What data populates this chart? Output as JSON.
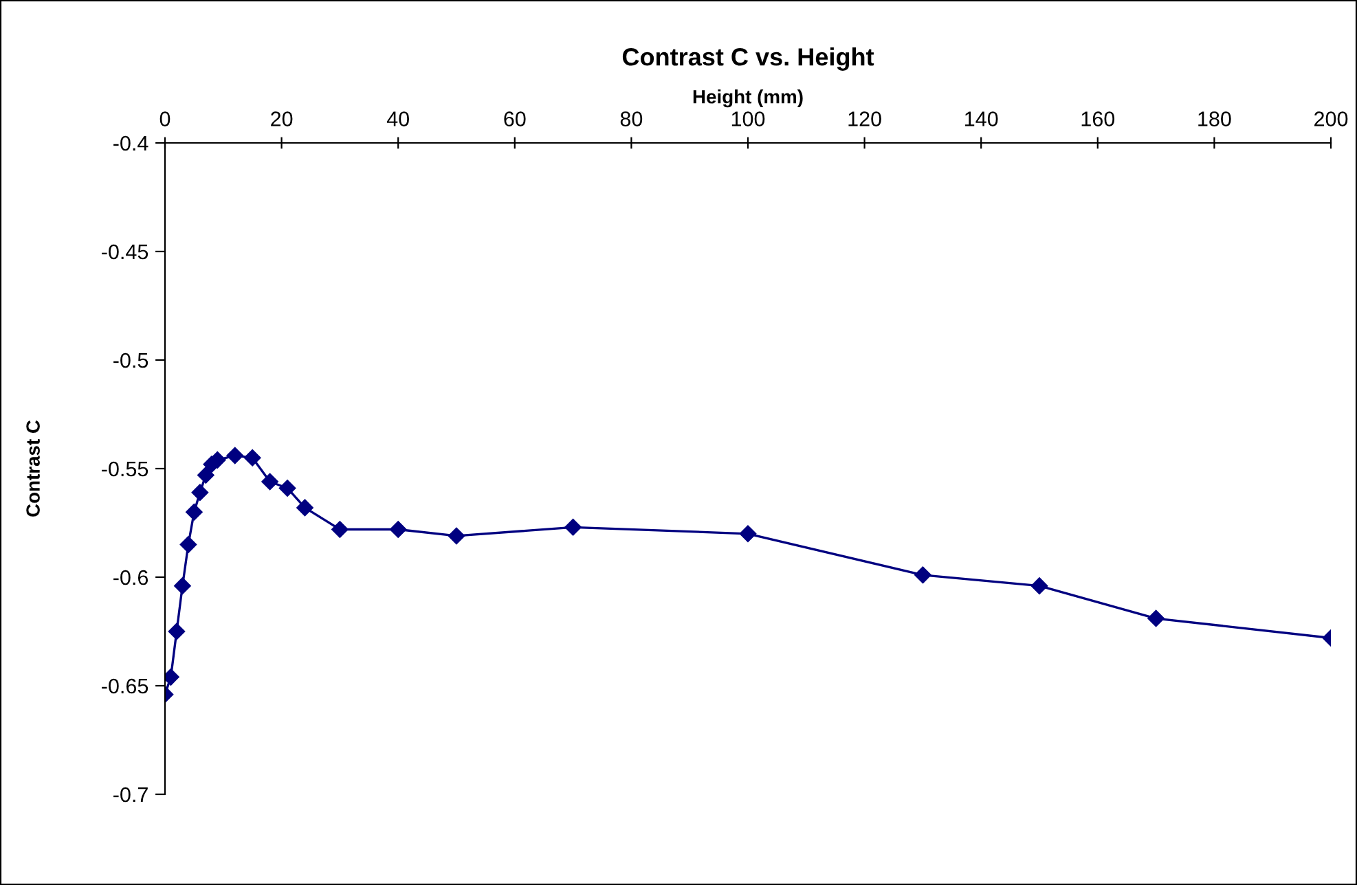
{
  "chart_data": {
    "type": "line",
    "title": "Contrast C vs. Height",
    "xlabel": "Height (mm)",
    "ylabel": "Contrast C",
    "x": [
      0,
      1,
      2,
      3,
      4,
      5,
      6,
      7,
      8,
      9,
      12,
      15,
      18,
      21,
      24,
      30,
      40,
      50,
      70,
      100,
      130,
      150,
      170,
      200
    ],
    "series": [
      {
        "color": "#000080",
        "values": [
          -0.654,
          -0.646,
          -0.625,
          -0.604,
          -0.585,
          -0.57,
          -0.561,
          -0.553,
          -0.548,
          -0.546,
          -0.544,
          -0.545,
          -0.556,
          -0.559,
          -0.568,
          -0.578,
          -0.578,
          -0.581,
          -0.577,
          -0.58,
          -0.599,
          -0.604,
          -0.619,
          -0.628
        ]
      }
    ],
    "xlim": [
      0,
      200
    ],
    "xticks": [
      0,
      20,
      40,
      60,
      80,
      100,
      120,
      140,
      160,
      180,
      200
    ],
    "ylim": [
      -0.7,
      -0.4
    ],
    "yticks": [
      -0.7,
      -0.65,
      -0.6,
      -0.55,
      -0.5,
      -0.45,
      -0.4
    ],
    "grid": false,
    "legend": false,
    "marker": "diamond",
    "line_style": "solid"
  }
}
